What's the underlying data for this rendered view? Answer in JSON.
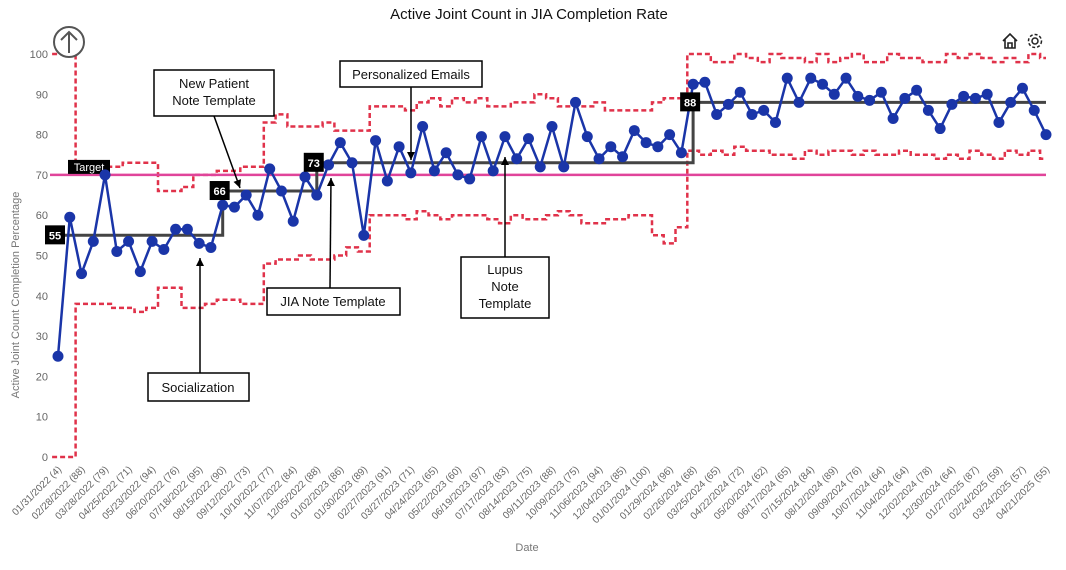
{
  "chart_data": {
    "type": "line",
    "title": "Active Joint Count in JIA Completion Rate",
    "xlabel": "Date",
    "ylabel": "Active Joint Count Completion Percentage",
    "ylim": [
      0,
      100
    ],
    "yticks": [
      0,
      10,
      20,
      30,
      40,
      50,
      60,
      70,
      80,
      90,
      100
    ],
    "target": {
      "label": "Target",
      "value": 70,
      "color": "#e0449a"
    },
    "x_tick_labels": [
      "01/31/2022 (4)",
      "02/28/2022 (88)",
      "03/28/2022 (79)",
      "04/25/2022 (71)",
      "05/23/2022 (94)",
      "06/20/2022 (76)",
      "07/18/2022 (95)",
      "08/15/2022 (90)",
      "09/12/2022 (73)",
      "10/10/2022 (77)",
      "11/07/2022 (84)",
      "12/05/2022 (88)",
      "01/02/2023 (86)",
      "01/30/2023 (89)",
      "02/27/2023 (91)",
      "03/27/2023 (71)",
      "04/24/2023 (65)",
      "05/22/2023 (60)",
      "06/19/2023 (97)",
      "07/17/2023 (83)",
      "08/14/2023 (75)",
      "09/11/2023 (88)",
      "10/09/2023 (75)",
      "11/06/2023 (94)",
      "12/04/2023 (85)",
      "01/01/2024 (100)",
      "01/29/2024 (96)",
      "02/26/2024 (68)",
      "03/25/2024 (65)",
      "04/22/2024 (72)",
      "05/20/2024 (62)",
      "06/17/2024 (65)",
      "07/15/2024 (84)",
      "08/12/2024 (89)",
      "09/09/2024 (76)",
      "10/07/2024 (64)",
      "11/04/2024 (64)",
      "12/02/2024 (78)",
      "12/30/2024 (64)",
      "01/27/2025 (87)",
      "02/24/2025 (59)",
      "03/24/2025 (57)",
      "04/21/2025 (55)"
    ],
    "series": [
      {
        "name": "Completion %",
        "color": "#1a35a8",
        "values": [
          25,
          59.5,
          45.5,
          53.5,
          70,
          51,
          53.5,
          46,
          53.5,
          51.5,
          56.5,
          56.5,
          53,
          52,
          62.5,
          62,
          65,
          60,
          71.5,
          66,
          58.5,
          69.5,
          65,
          72.5,
          78,
          73,
          55,
          78.5,
          68.5,
          77,
          70.5,
          82,
          71,
          75.5,
          70,
          69,
          79.5,
          71,
          79.5,
          74,
          79,
          72,
          82,
          72,
          88,
          79.5,
          74,
          77,
          74.5,
          81,
          78,
          77,
          80,
          75.5,
          92.5,
          93,
          85,
          87.5,
          90.5,
          85,
          86,
          83,
          94,
          88,
          94,
          92.5,
          90,
          94,
          89.5,
          88.5,
          90.5,
          84,
          89,
          91,
          86,
          81.5,
          87.5,
          89.5,
          89,
          90,
          83,
          88,
          91.5,
          86,
          80
        ]
      },
      {
        "name": "Center Line",
        "color": "#444444",
        "steps": [
          {
            "from": 0,
            "to": 14,
            "value": 55
          },
          {
            "from": 14,
            "to": 22,
            "value": 66
          },
          {
            "from": 22,
            "to": 54,
            "value": 73
          },
          {
            "from": 54,
            "to": 84,
            "value": 88
          }
        ]
      },
      {
        "name": "Upper Control Limit",
        "color": "#e0324a",
        "values": [
          100,
          100,
          72,
          72,
          72,
          72,
          73,
          73,
          73,
          66,
          66,
          67,
          70,
          70,
          71,
          71,
          72,
          72,
          83,
          85,
          82,
          82,
          82,
          83,
          81,
          81,
          81,
          87,
          87,
          87,
          86,
          88,
          89,
          87,
          89,
          88,
          89,
          87,
          87,
          88,
          88,
          90,
          89,
          87,
          87,
          87,
          88,
          86,
          86,
          86,
          86,
          88,
          89,
          89,
          100,
          100,
          98,
          98,
          100,
          99,
          98,
          100,
          99,
          99,
          98,
          100,
          98,
          99,
          100,
          98,
          98,
          100,
          99,
          99,
          98,
          98,
          100,
          99,
          100,
          99,
          98,
          99,
          98,
          100,
          99
        ]
      },
      {
        "name": "Lower Control Limit",
        "color": "#e0324a",
        "values": [
          0,
          0,
          38,
          38,
          38,
          37,
          37,
          36,
          37,
          42,
          42,
          37,
          37,
          38,
          39,
          39,
          38,
          38,
          48,
          49,
          49,
          50,
          49,
          49,
          50,
          52,
          51,
          60,
          60,
          60,
          59,
          61,
          60,
          59,
          60,
          60,
          60,
          59,
          58,
          60,
          59,
          59,
          60,
          61,
          60,
          58,
          58,
          59,
          59,
          60,
          60,
          55,
          53,
          57,
          76,
          75,
          76,
          75,
          77,
          76,
          76,
          75,
          75,
          74,
          76,
          75,
          76,
          76,
          75,
          76,
          75,
          75,
          76,
          75,
          75,
          74,
          75,
          74,
          76,
          75,
          74,
          76,
          75,
          76,
          74
        ]
      }
    ],
    "badges": [
      {
        "label": "55",
        "index": 0,
        "value": 55
      },
      {
        "label": "66",
        "index": 14,
        "value": 66
      },
      {
        "label": "73",
        "index": 22,
        "value": 73
      },
      {
        "label": "88",
        "index": 54,
        "value": 88
      }
    ],
    "annotations": [
      {
        "lines": [
          "New Patient",
          "Note Template"
        ],
        "point_index": 14,
        "point_value": 65
      },
      {
        "lines": [
          "Personalized Emails"
        ],
        "point_index": 28,
        "point_value": 72
      },
      {
        "lines": [
          "JIA Note Template"
        ],
        "point_index": 21,
        "point_value": 66
      },
      {
        "lines": [
          "Socialization"
        ],
        "point_index": 11,
        "point_value": 55
      },
      {
        "lines": [
          "Lupus",
          "Note",
          "Template"
        ],
        "point_index": 36,
        "point_value": 73
      }
    ]
  },
  "toolbar": {
    "home_icon": "home-icon",
    "settings_icon": "gear-icon",
    "up_icon": "arrow-up-icon"
  }
}
